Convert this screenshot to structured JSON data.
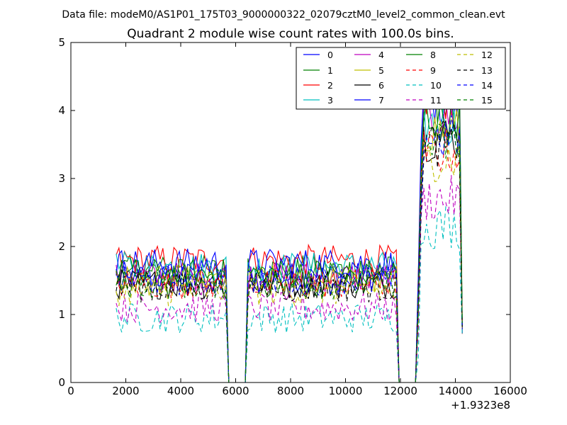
{
  "figure": {
    "suptitle": "Data file: modeM0/AS1P01_175T03_9000000322_02079cztM0_level2_common_clean.evt",
    "x_offset_label": "+1.9323e8"
  },
  "chart_data": {
    "type": "line",
    "title": "Quadrant 2 module wise count rates with 100.0s bins.",
    "xlabel": "",
    "ylabel": "",
    "xlim": [
      0,
      16000
    ],
    "ylim": [
      0,
      5
    ],
    "x_ticks": [
      0,
      2000,
      4000,
      6000,
      8000,
      10000,
      12000,
      14000,
      16000
    ],
    "y_ticks": [
      0,
      1,
      2,
      3,
      4,
      5
    ],
    "x_offset": 193230000,
    "bin_size_s": 100,
    "grid": false,
    "legend_position": "top-right",
    "legend_ncol": 4,
    "segments": [
      {
        "x_start": 1650,
        "x_end": 5650
      },
      {
        "x_start": 6450,
        "x_end": 11850
      },
      {
        "x_start": 12650,
        "x_end": 14250
      }
    ],
    "series": [
      {
        "name": "0",
        "color": "#0000ff",
        "dash": "solid",
        "level_mid": 1.55,
        "level_high": 4.1
      },
      {
        "name": "1",
        "color": "#008000",
        "dash": "solid",
        "level_mid": 1.65,
        "level_high": 4.15
      },
      {
        "name": "2",
        "color": "#ff0000",
        "dash": "solid",
        "level_mid": 1.8,
        "level_high": 4.2
      },
      {
        "name": "3",
        "color": "#00bfbf",
        "dash": "solid",
        "level_mid": 1.7,
        "level_high": 3.8
      },
      {
        "name": "4",
        "color": "#bf00bf",
        "dash": "solid",
        "level_mid": 1.55,
        "level_high": 3.9
      },
      {
        "name": "5",
        "color": "#bfbf00",
        "dash": "solid",
        "level_mid": 1.5,
        "level_high": 3.7
      },
      {
        "name": "6",
        "color": "#000000",
        "dash": "solid",
        "level_mid": 1.45,
        "level_high": 3.6
      },
      {
        "name": "7",
        "color": "#0000ff",
        "dash": "solid",
        "level_mid": 1.75,
        "level_high": 4.3
      },
      {
        "name": "8",
        "color": "#008000",
        "dash": "solid",
        "level_mid": 1.6,
        "level_high": 3.9
      },
      {
        "name": "9",
        "color": "#ff0000",
        "dash": "dashed",
        "level_mid": 1.45,
        "level_high": 3.4
      },
      {
        "name": "10",
        "color": "#00bfbf",
        "dash": "dashed",
        "level_mid": 0.95,
        "level_high": 2.3
      },
      {
        "name": "11",
        "color": "#bf00bf",
        "dash": "dashed",
        "level_mid": 1.1,
        "level_high": 2.7
      },
      {
        "name": "12",
        "color": "#bfbf00",
        "dash": "dashed",
        "level_mid": 1.35,
        "level_high": 3.3
      },
      {
        "name": "13",
        "color": "#000000",
        "dash": "dashed",
        "level_mid": 1.4,
        "level_high": 3.5
      },
      {
        "name": "14",
        "color": "#0000ff",
        "dash": "dashed",
        "level_mid": 1.5,
        "level_high": 3.6
      },
      {
        "name": "15",
        "color": "#008000",
        "dash": "dashed",
        "level_mid": 1.45,
        "level_high": 3.5
      }
    ]
  }
}
